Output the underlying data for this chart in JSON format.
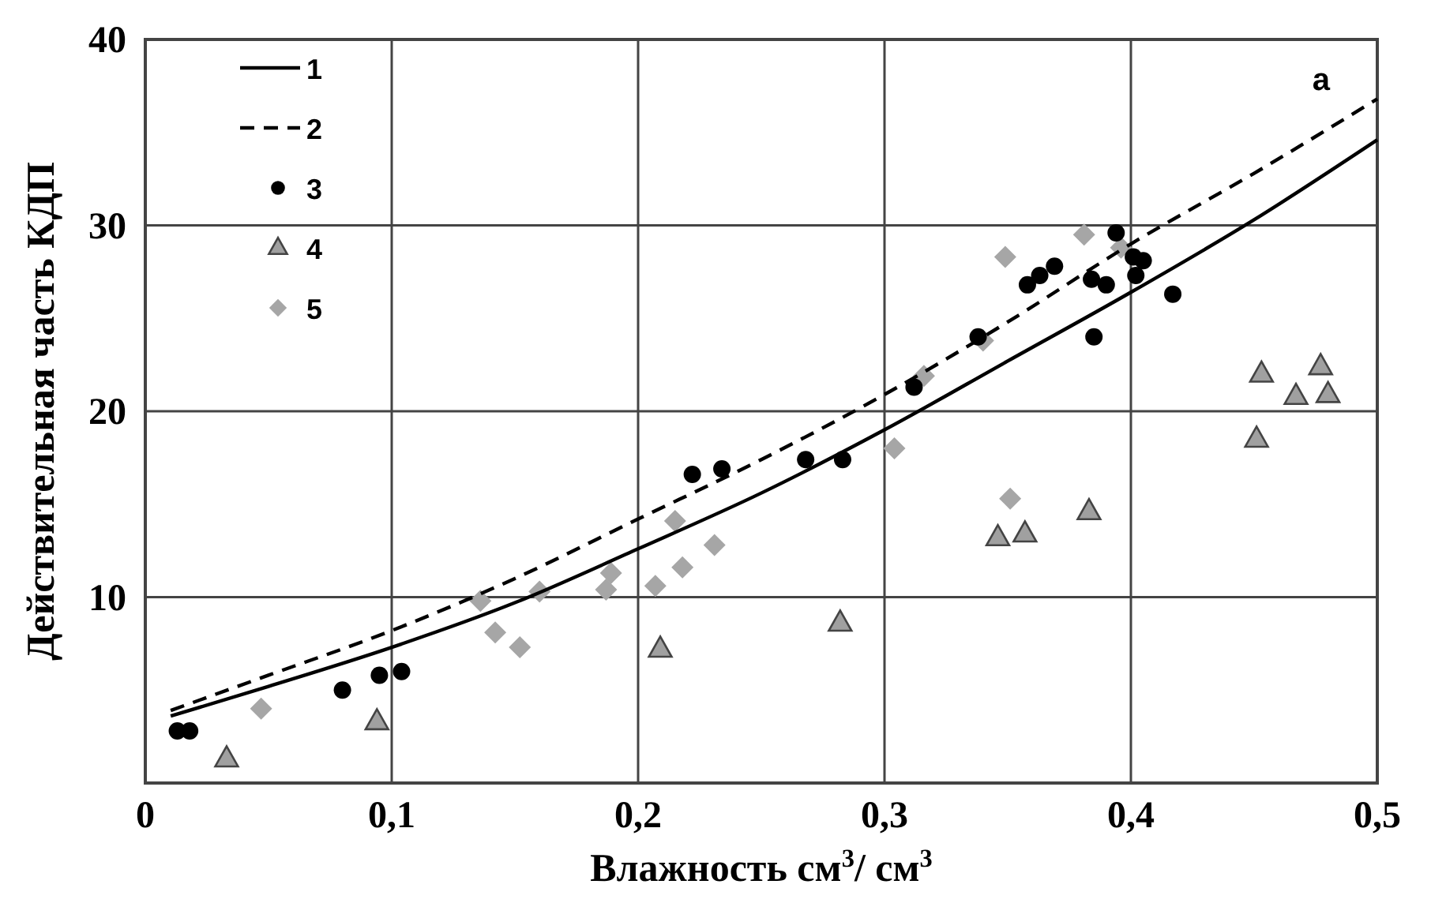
{
  "chart_data": {
    "type": "scatter",
    "xlabel": "Влажность см$^{3}$/ см$^{3}$",
    "ylabel": "Действительная часть КДП",
    "xlim": [
      0,
      0.5
    ],
    "ylim": [
      0,
      40
    ],
    "xticks": [
      {
        "value": 0,
        "label": "0"
      },
      {
        "value": 0.1,
        "label": "0,1"
      },
      {
        "value": 0.2,
        "label": "0,2"
      },
      {
        "value": 0.3,
        "label": "0,3"
      },
      {
        "value": 0.4,
        "label": "0,4"
      },
      {
        "value": 0.5,
        "label": "0,5"
      }
    ],
    "yticks": [
      10,
      20,
      30,
      40
    ],
    "grid": true,
    "legend": "top left",
    "annotations": [
      "а"
    ],
    "series": [
      {
        "name": "1",
        "type": "line",
        "color": "#000000",
        "line_style": "solid",
        "x": [
          0.0103,
          0.05,
          0.1,
          0.15,
          0.2,
          0.25,
          0.3,
          0.35,
          0.4,
          0.45,
          0.5
        ],
        "values": [
          3.6,
          5.2,
          7.3,
          9.7,
          12.6,
          15.6,
          19.0,
          22.7,
          26.4,
          30.3,
          34.6
        ]
      },
      {
        "name": "2",
        "type": "line",
        "color": "#000000",
        "line_style": "dashed",
        "x": [
          0.0103,
          0.05,
          0.1,
          0.15,
          0.2,
          0.25,
          0.3,
          0.35,
          0.4,
          0.45,
          0.5
        ],
        "values": [
          3.9,
          5.8,
          8.2,
          11.0,
          14.2,
          17.4,
          20.9,
          24.8,
          29.0,
          32.8,
          36.8
        ]
      },
      {
        "name": "3",
        "color": "#000000",
        "marker": "circle",
        "x": [
          0.013,
          0.018,
          0.08,
          0.095,
          0.104,
          0.222,
          0.234,
          0.268,
          0.283,
          0.312,
          0.338,
          0.358,
          0.363,
          0.369,
          0.394,
          0.401,
          0.405,
          0.402,
          0.384,
          0.39,
          0.385,
          0.417
        ],
        "values": [
          2.8,
          2.8,
          5.0,
          5.8,
          6.0,
          16.6,
          16.9,
          17.4,
          17.4,
          21.3,
          24.0,
          26.8,
          27.3,
          27.8,
          29.6,
          28.3,
          28.1,
          27.3,
          27.1,
          26.8,
          24.0,
          26.3
        ]
      },
      {
        "name": "4",
        "color": "#a0a0a0",
        "marker": "triangle",
        "x": [
          0.033,
          0.094,
          0.209,
          0.282,
          0.346,
          0.357,
          0.383,
          0.451,
          0.453,
          0.467,
          0.477,
          0.48
        ],
        "values": [
          1.3,
          3.3,
          7.2,
          8.6,
          13.2,
          13.4,
          14.6,
          18.5,
          22.0,
          20.8,
          22.4,
          20.9
        ]
      },
      {
        "name": "5",
        "color": "#a6a6a6",
        "marker": "diamond",
        "x": [
          0.047,
          0.136,
          0.142,
          0.152,
          0.16,
          0.187,
          0.189,
          0.207,
          0.218,
          0.215,
          0.231,
          0.304,
          0.316,
          0.34,
          0.349,
          0.351,
          0.381,
          0.396
        ],
        "values": [
          4.0,
          9.8,
          8.1,
          7.3,
          10.3,
          10.4,
          11.3,
          10.6,
          11.6,
          14.1,
          12.8,
          18.0,
          21.9,
          23.8,
          28.3,
          15.3,
          29.5,
          28.8
        ]
      }
    ]
  }
}
